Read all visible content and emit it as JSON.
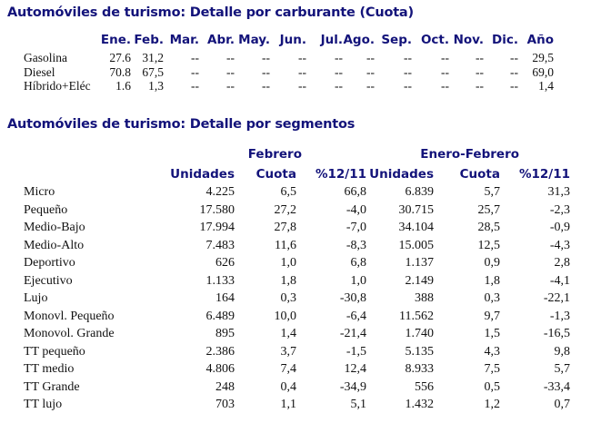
{
  "fuel_table": {
    "title": "Automóviles de turismo: Detalle por carburante (Cuota)",
    "columns": [
      "Ene.",
      "Feb.",
      "Mar.",
      "Abr.",
      "May.",
      "Jun.",
      "Jul.",
      "Ago.",
      "Sep.",
      "Oct.",
      "Nov.",
      "Dic.",
      "Año"
    ],
    "rows": [
      {
        "label": "Gasolina",
        "values": [
          "27.6",
          "31,2",
          "--",
          "--",
          "--",
          "--",
          "--",
          "--",
          "--",
          "--",
          "--",
          "--",
          "29,5"
        ]
      },
      {
        "label": "Diesel",
        "values": [
          "70.8",
          "67,5",
          "--",
          "--",
          "--",
          "--",
          "--",
          "--",
          "--",
          "--",
          "--",
          "--",
          "69,0"
        ]
      },
      {
        "label": "Híbrido+Eléc",
        "values": [
          "1.6",
          "1,3",
          "--",
          "--",
          "--",
          "--",
          "--",
          "--",
          "--",
          "--",
          "--",
          "--",
          "1,4"
        ]
      }
    ]
  },
  "segment_table": {
    "title": "Automóviles de turismo: Detalle por segmentos",
    "group_headers": [
      "Febrero",
      "Enero-Febrero"
    ],
    "columns": [
      "Unidades",
      "Cuota",
      "%12/11",
      "Unidades",
      "Cuota",
      "%12/11"
    ],
    "rows": [
      {
        "label": "Micro",
        "values": [
          "4.225",
          "6,5",
          "66,8",
          "6.839",
          "5,7",
          "31,3"
        ]
      },
      {
        "label": "Pequeño",
        "values": [
          "17.580",
          "27,2",
          "-4,0",
          "30.715",
          "25,7",
          "-2,3"
        ]
      },
      {
        "label": "Medio-Bajo",
        "values": [
          "17.994",
          "27,8",
          "-7,0",
          "34.104",
          "28,5",
          "-0,9"
        ]
      },
      {
        "label": "Medio-Alto",
        "values": [
          "7.483",
          "11,6",
          "-8,3",
          "15.005",
          "12,5",
          "-4,3"
        ]
      },
      {
        "label": "Deportivo",
        "values": [
          "626",
          "1,0",
          "6,8",
          "1.137",
          "0,9",
          "2,8"
        ]
      },
      {
        "label": "Ejecutivo",
        "values": [
          "1.133",
          "1,8",
          "1,0",
          "2.149",
          "1,8",
          "-4,1"
        ]
      },
      {
        "label": "Lujo",
        "values": [
          "164",
          "0,3",
          "-30,8",
          "388",
          "0,3",
          "-22,1"
        ]
      },
      {
        "label": "Monovl. Pequeño",
        "values": [
          "6.489",
          "10,0",
          "-6,4",
          "11.562",
          "9,7",
          "-1,3"
        ]
      },
      {
        "label": "Monovol. Grande",
        "values": [
          "895",
          "1,4",
          "-21,4",
          "1.740",
          "1,5",
          "-16,5"
        ]
      },
      {
        "label": "TT pequeño",
        "values": [
          "2.386",
          "3,7",
          "-1,5",
          "5.135",
          "4,3",
          "9,8"
        ]
      },
      {
        "label": "TT medio",
        "values": [
          "4.806",
          "7,4",
          "12,4",
          "8.933",
          "7,5",
          "5,7"
        ]
      },
      {
        "label": "TT Grande",
        "values": [
          "248",
          "0,4",
          "-34,9",
          "556",
          "0,5",
          "-33,4"
        ]
      },
      {
        "label": "TT lujo",
        "values": [
          "703",
          "1,1",
          "5,1",
          "1.432",
          "1,2",
          "0,7"
        ]
      }
    ]
  },
  "colors": {
    "heading": "#13137a",
    "text": "#111111",
    "background": "#ffffff"
  }
}
